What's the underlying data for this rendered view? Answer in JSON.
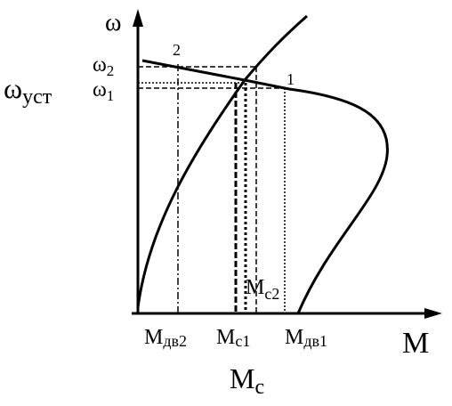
{
  "axes": {
    "y": "ω",
    "x": "M"
  },
  "points": [
    "2",
    "1"
  ],
  "y_labels": [
    {
      "main": "ω",
      "sub": "2"
    },
    {
      "main": "ω",
      "sub": "1"
    },
    {
      "main": "ω",
      "sub": "уст"
    }
  ],
  "x_labels": [
    {
      "main": "M",
      "sub": "дв2"
    },
    {
      "main": "M",
      "sub": "c1"
    },
    {
      "main": "M",
      "sub": "дв1"
    },
    {
      "main": "M",
      "sub": "c2"
    },
    {
      "main": "M",
      "sub": "c"
    }
  ]
}
